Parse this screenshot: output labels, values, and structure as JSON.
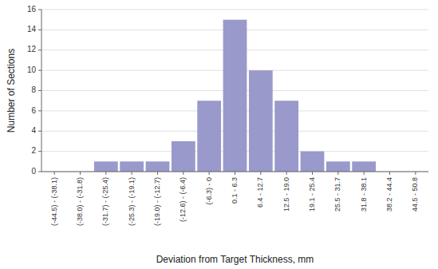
{
  "chart_data": {
    "type": "bar",
    "categories": [
      "(-44.5) - (-38.1)",
      "(-38.0) - (-31.8)",
      "(-31.7) - (-25.4)",
      "(-25.3) - (-19.1)",
      "(-19.0) - (-12.7)",
      "(-12.6) - (-6.4)",
      "(-6.3) - 0",
      "0.1 - 6.3",
      "6.4 - 12.7",
      "12.5 - 19.0",
      "19.1 - 25.4",
      "25.5 - 31.7",
      "31.8 - 38.1",
      "38.2 - 44.4",
      "44.5 - 50.8"
    ],
    "values": [
      0,
      0,
      1,
      1,
      1,
      3,
      7,
      15,
      10,
      7,
      2,
      1,
      1,
      0,
      0
    ],
    "color": "#9999cc",
    "xlabel": "Deviation from Target Thickness, mm",
    "ylabel": "Number of Sections",
    "ylim": [
      0,
      16
    ],
    "yticks": [
      0,
      2,
      4,
      6,
      8,
      10,
      12,
      14,
      16
    ],
    "grid": true
  }
}
